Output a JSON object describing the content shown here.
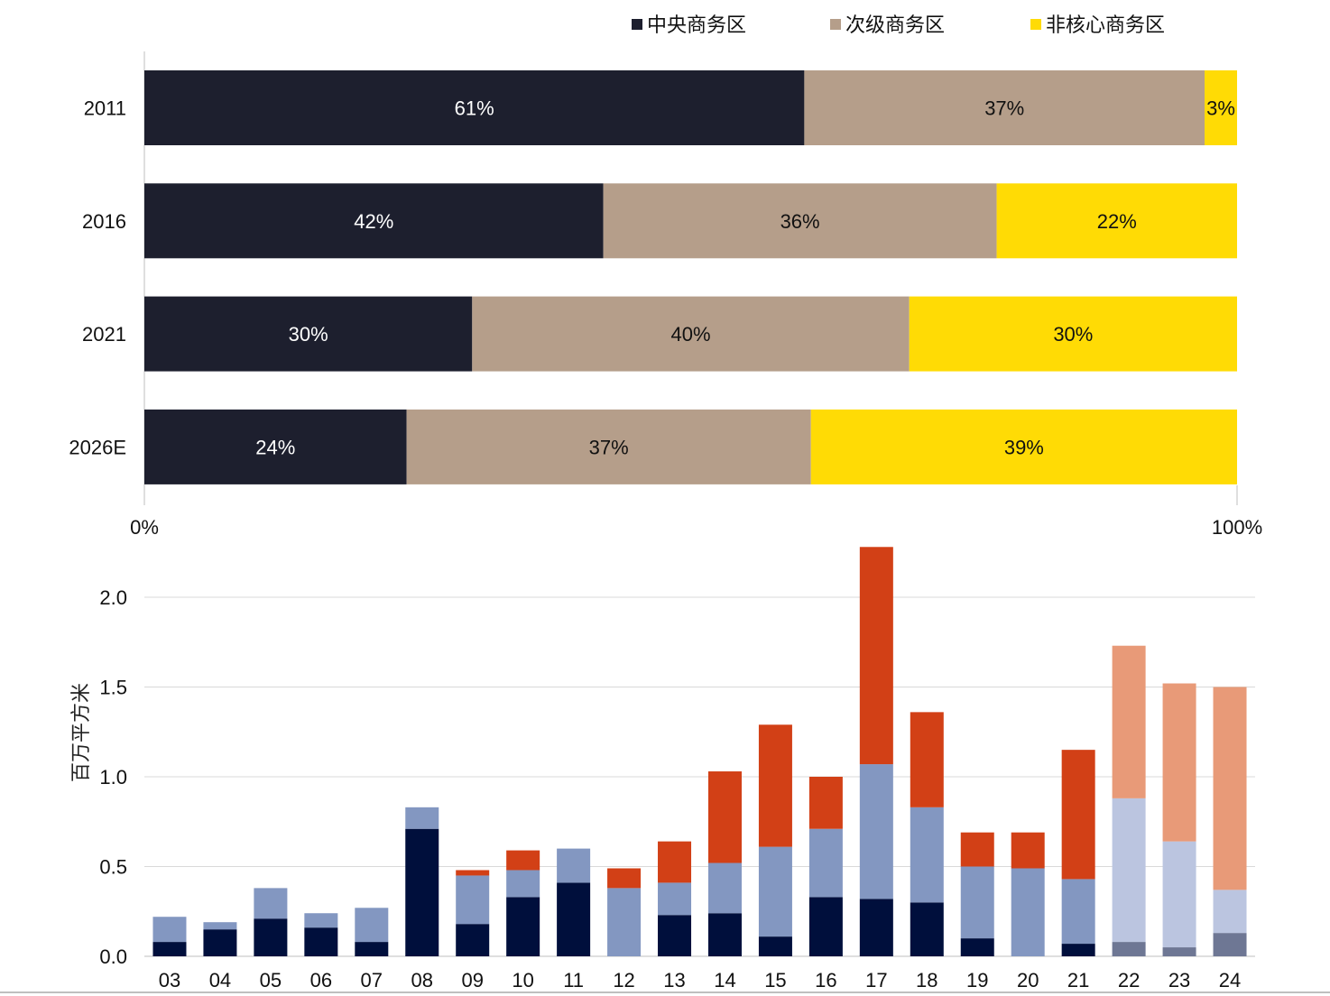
{
  "chart_data": [
    {
      "type": "bar",
      "orientation": "horizontal",
      "stacked": true,
      "categories": [
        "2011",
        "2016",
        "2021",
        "2026E"
      ],
      "series": [
        {
          "name": "中央商务区",
          "color": "#1d1f2e",
          "label_color": "#ffffff",
          "values": [
            61,
            42,
            30,
            24
          ],
          "labels": [
            "61%",
            "42%",
            "30%",
            "24%"
          ]
        },
        {
          "name": "次级商务区",
          "color": "#b59e8a",
          "label_color": "#111111",
          "values": [
            37,
            36,
            40,
            37
          ],
          "labels": [
            "37%",
            "36%",
            "40%",
            "37%"
          ]
        },
        {
          "name": "非核心商务区",
          "color": "#ffdb05",
          "label_color": "#111111",
          "values": [
            3,
            22,
            30,
            39
          ],
          "labels": [
            "3%",
            "22%",
            "30%",
            "39%"
          ]
        }
      ],
      "xlim": [
        0,
        100
      ],
      "x_ticks": [
        "0%",
        "100%"
      ],
      "legend_position": "top"
    },
    {
      "type": "bar",
      "stacked": true,
      "categories": [
        "03",
        "04",
        "05",
        "06",
        "07",
        "08",
        "09",
        "10",
        "11",
        "12",
        "13",
        "14",
        "15",
        "16",
        "17",
        "18",
        "19",
        "20",
        "21",
        "22",
        "23",
        "24"
      ],
      "ylabel": "百万平方米",
      "ylim": [
        0,
        2.3
      ],
      "y_ticks": [
        "0.0",
        "0.5",
        "1.0",
        "1.5",
        "2.0"
      ],
      "grid": true,
      "series": [
        {
          "values": [
            0.08,
            0.15,
            0.21,
            0.16,
            0.08,
            0.71,
            0.18,
            0.33,
            0.41,
            0.0,
            0.23,
            0.24,
            0.11,
            0.33,
            0.32,
            0.3,
            0.1,
            0.0,
            0.07,
            0.08,
            0.05,
            0.13
          ],
          "colors": [
            "#000f3c",
            "#000f3c",
            "#000f3c",
            "#000f3c",
            "#000f3c",
            "#000f3c",
            "#000f3c",
            "#000f3c",
            "#000f3c",
            "#000f3c",
            "#000f3c",
            "#000f3c",
            "#000f3c",
            "#000f3c",
            "#000f3c",
            "#000f3c",
            "#000f3c",
            "#000f3c",
            "#000f3c",
            "#6e7794",
            "#6e7794",
            "#6e7794"
          ]
        },
        {
          "values": [
            0.14,
            0.04,
            0.17,
            0.08,
            0.19,
            0.12,
            0.27,
            0.15,
            0.19,
            0.38,
            0.18,
            0.28,
            0.5,
            0.38,
            0.75,
            0.53,
            0.4,
            0.49,
            0.36,
            0.8,
            0.59,
            0.24
          ],
          "colors": [
            "#8397c1",
            "#8397c1",
            "#8397c1",
            "#8397c1",
            "#8397c1",
            "#8397c1",
            "#8397c1",
            "#8397c1",
            "#8397c1",
            "#8397c1",
            "#8397c1",
            "#8397c1",
            "#8397c1",
            "#8397c1",
            "#8397c1",
            "#8397c1",
            "#8397c1",
            "#8397c1",
            "#8397c1",
            "#bbc5e0",
            "#bbc5e0",
            "#bbc5e0"
          ]
        },
        {
          "values": [
            0,
            0,
            0,
            0,
            0,
            0,
            0.03,
            0.11,
            0,
            0.11,
            0.23,
            0.51,
            0.68,
            0.29,
            1.21,
            0.53,
            0.19,
            0.2,
            0.72,
            0.85,
            0.88,
            1.13
          ],
          "colors": [
            "#d24016",
            "#d24016",
            "#d24016",
            "#d24016",
            "#d24016",
            "#d24016",
            "#d24016",
            "#d24016",
            "#d24016",
            "#d24016",
            "#d24016",
            "#d24016",
            "#d24016",
            "#d24016",
            "#d24016",
            "#d24016",
            "#d24016",
            "#d24016",
            "#d24016",
            "#e89a78",
            "#e89a78",
            "#e89a78"
          ]
        }
      ]
    }
  ]
}
